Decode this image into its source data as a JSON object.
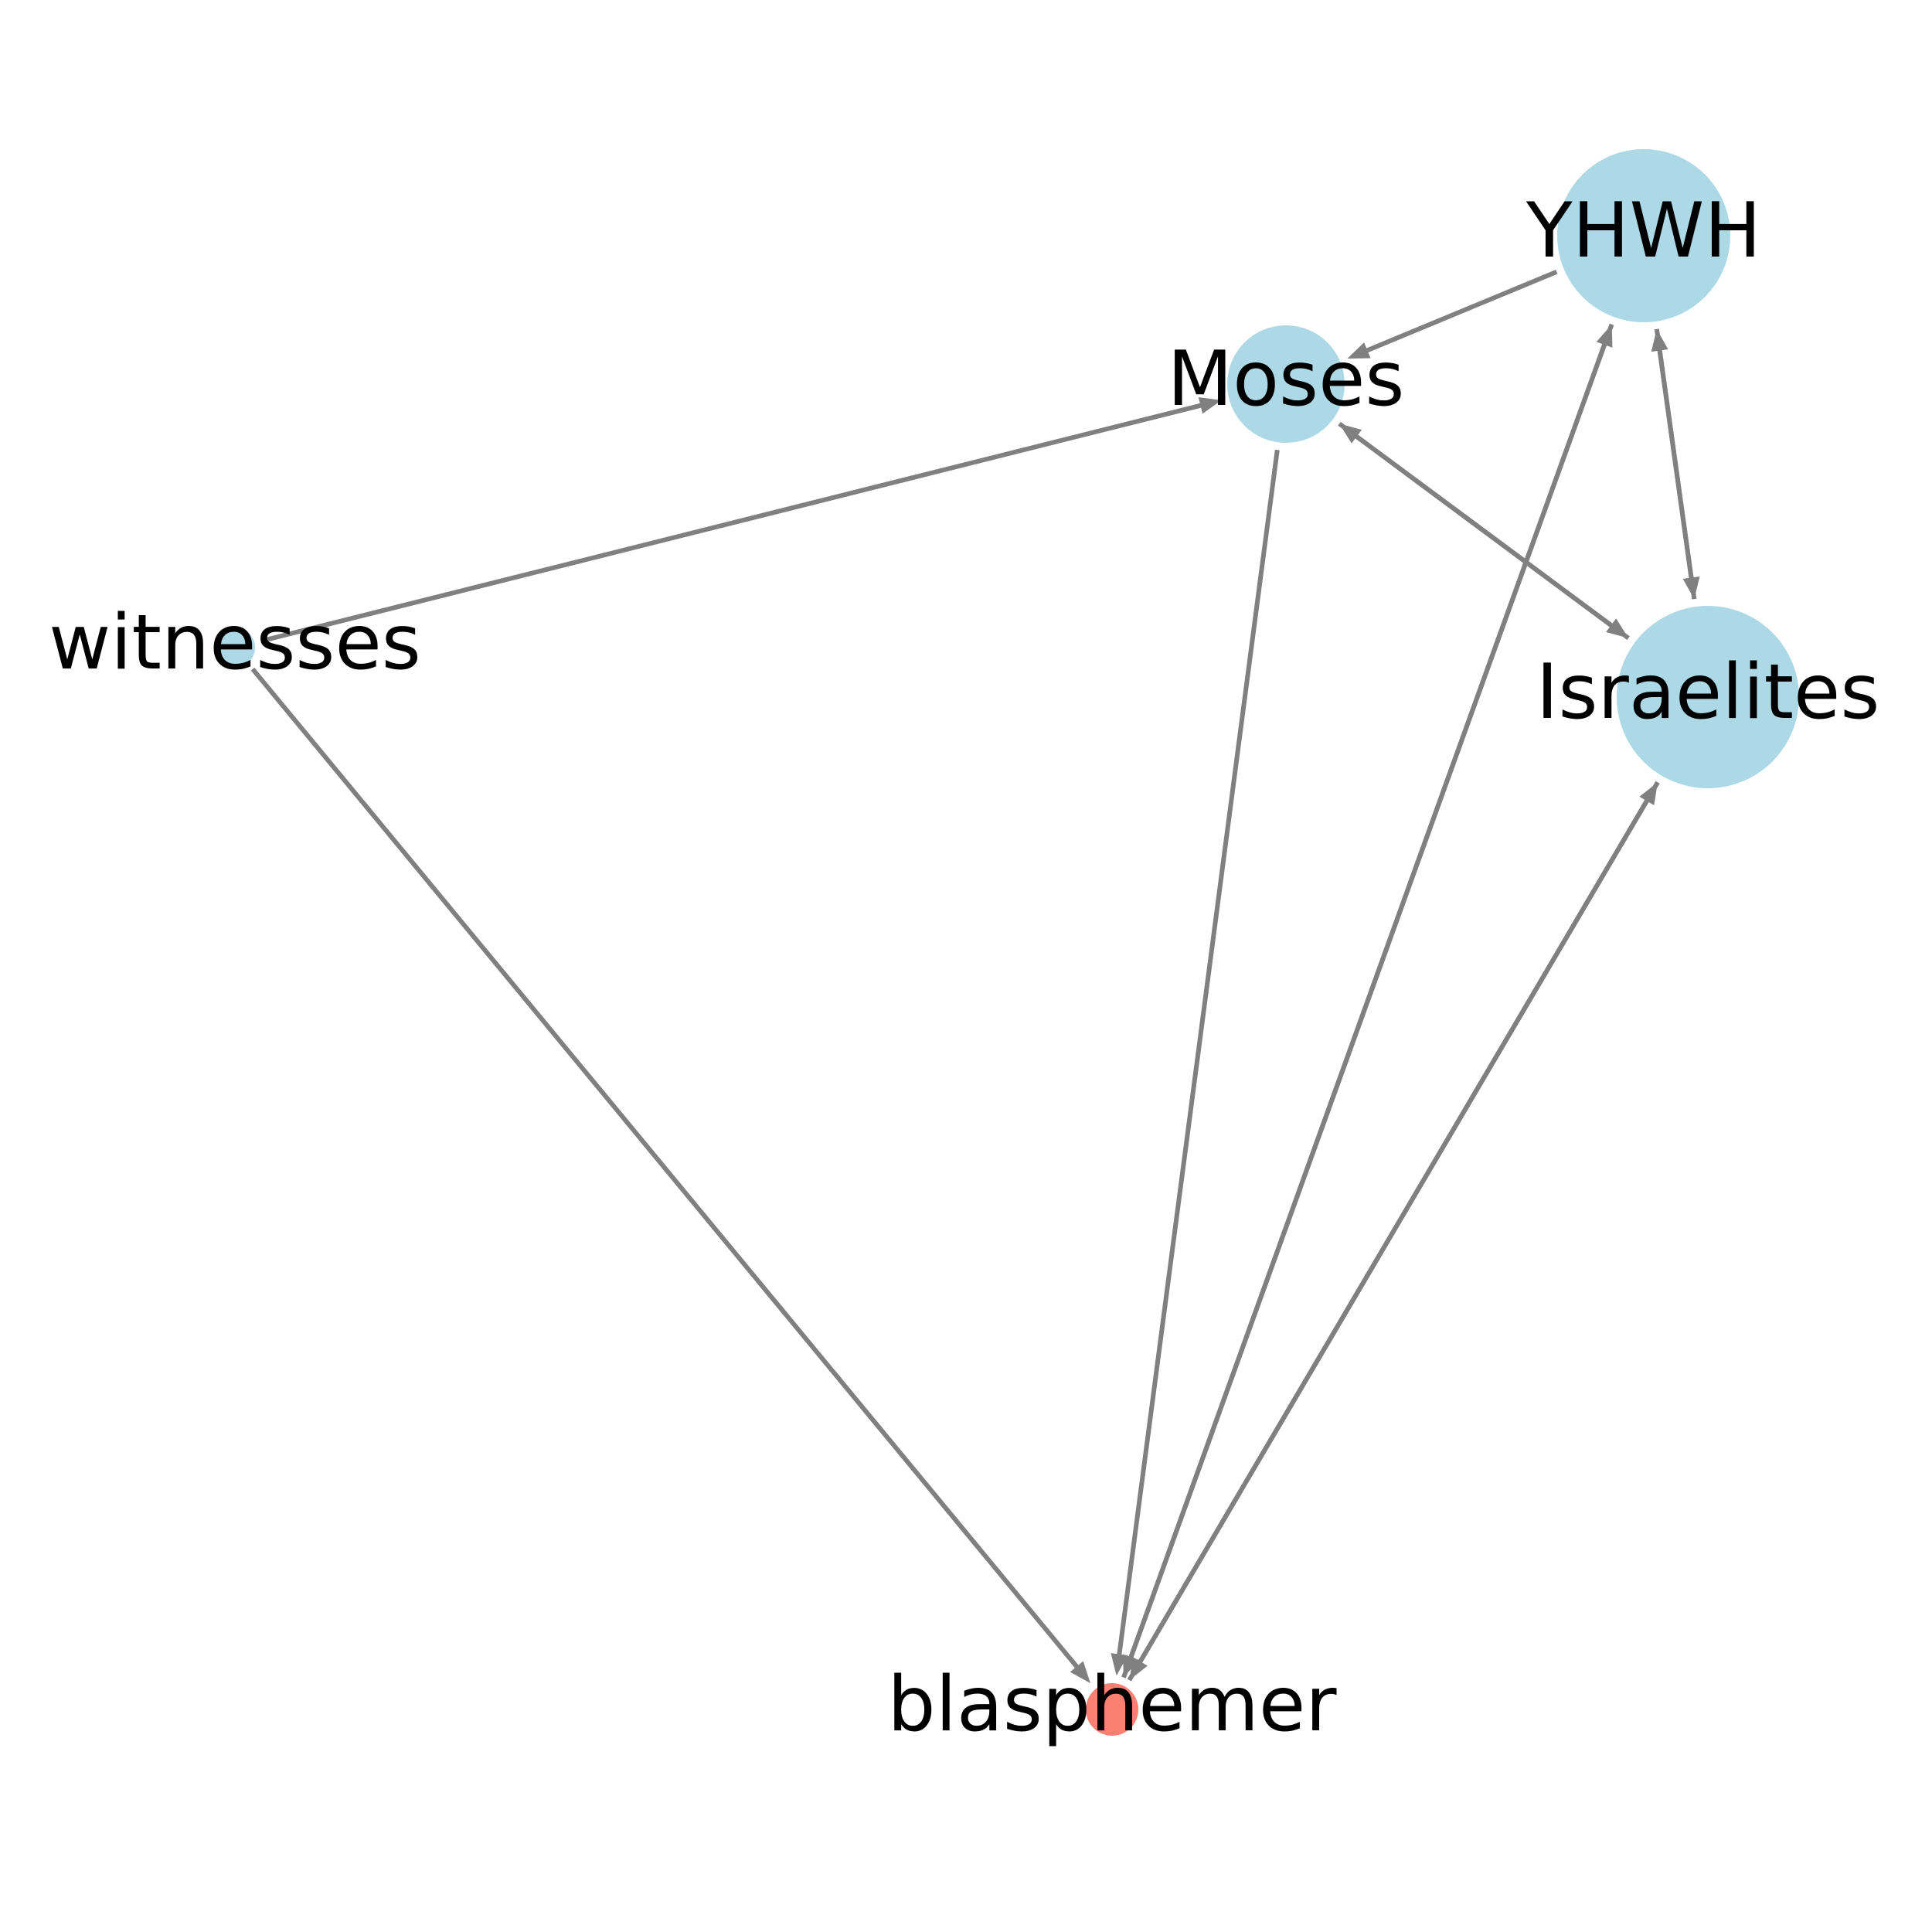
{
  "graph": {
    "directed": true,
    "colors": {
      "node_default": "#add8e6",
      "node_highlight": "#fa8072",
      "edge": "#808080",
      "label": "#000000"
    },
    "nodes": [
      {
        "id": "YHWH",
        "label": "YHWH",
        "color": "#add8e6"
      },
      {
        "id": "Moses",
        "label": "Moses",
        "color": "#add8e6"
      },
      {
        "id": "witnesses",
        "label": "witnesses",
        "color": "#add8e6"
      },
      {
        "id": "Israelites",
        "label": "Israelites",
        "color": "#add8e6"
      },
      {
        "id": "blasphemer",
        "label": "blasphemer",
        "color": "#fa8072"
      }
    ],
    "edges": [
      {
        "source": "YHWH",
        "target": "Moses"
      },
      {
        "source": "YHWH",
        "target": "Israelites"
      },
      {
        "source": "Israelites",
        "target": "YHWH"
      },
      {
        "source": "Moses",
        "target": "Israelites"
      },
      {
        "source": "Israelites",
        "target": "Moses"
      },
      {
        "source": "witnesses",
        "target": "Moses"
      },
      {
        "source": "witnesses",
        "target": "blasphemer"
      },
      {
        "source": "Moses",
        "target": "blasphemer"
      },
      {
        "source": "blasphemer",
        "target": "YHWH"
      },
      {
        "source": "YHWH",
        "target": "blasphemer"
      },
      {
        "source": "blasphemer",
        "target": "Israelites"
      },
      {
        "source": "Israelites",
        "target": "blasphemer"
      }
    ]
  }
}
